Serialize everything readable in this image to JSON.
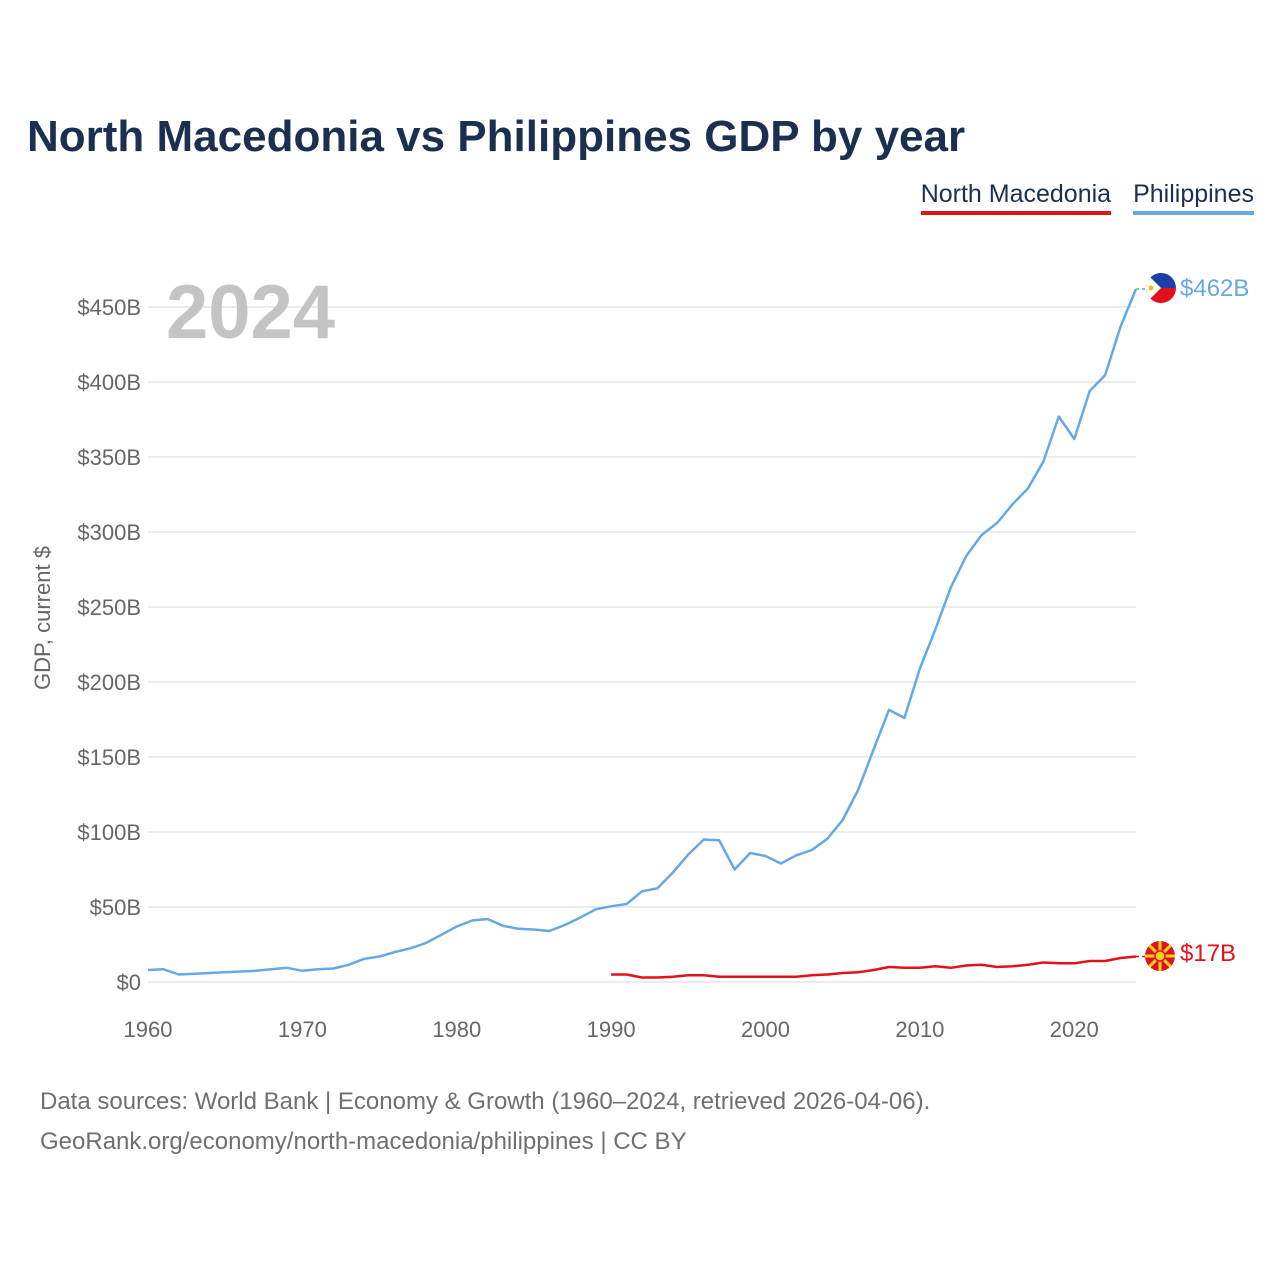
{
  "title": "North Macedonia vs Philippines GDP by year",
  "legend": {
    "north_macedonia": "North Macedonia",
    "philippines": "Philippines"
  },
  "colors": {
    "north_macedonia": "#e3121a",
    "philippines": "#66a8e6",
    "title": "#1b3050"
  },
  "icons": {
    "north_macedonia": "north-macedonia-flag-icon",
    "philippines": "philippines-flag-icon"
  },
  "footer": {
    "line1": "Data sources: World Bank | Economy & Growth (1960–2024, retrieved 2026-04-06).",
    "line2": "GeoRank.org/economy/north-macedonia/philippines | CC BY"
  },
  "chart_data": {
    "type": "line",
    "title": "North Macedonia vs Philippines GDP by year",
    "xlabel": "",
    "ylabel": "GDP, current $",
    "year_label": "2024",
    "xlim": [
      1960,
      2024
    ],
    "ylim": [
      0,
      462
    ],
    "grid": true,
    "x_ticks": [
      1960,
      1970,
      1980,
      1990,
      2000,
      2010,
      2020
    ],
    "x_tick_labels": [
      "1960",
      "1970",
      "1980",
      "1990",
      "2000",
      "2010",
      "2020"
    ],
    "y_ticks": [
      0,
      50,
      100,
      150,
      200,
      250,
      300,
      350,
      400,
      450
    ],
    "y_tick_labels": [
      "$0",
      "$50B",
      "$100B",
      "$150B",
      "$200B",
      "$250B",
      "$300B",
      "$350B",
      "$400B",
      "$450B"
    ],
    "series": [
      {
        "name": "Philippines",
        "key": "philippines",
        "end_label": "$462B",
        "x": [
          1960,
          1961,
          1962,
          1963,
          1964,
          1965,
          1966,
          1967,
          1968,
          1969,
          1970,
          1971,
          1972,
          1973,
          1974,
          1975,
          1976,
          1977,
          1978,
          1979,
          1980,
          1981,
          1982,
          1983,
          1984,
          1985,
          1986,
          1987,
          1988,
          1989,
          1990,
          1991,
          1992,
          1993,
          1994,
          1995,
          1996,
          1997,
          1998,
          1999,
          2000,
          2001,
          2002,
          2003,
          2004,
          2005,
          2006,
          2007,
          2008,
          2009,
          2010,
          2011,
          2012,
          2013,
          2014,
          2015,
          2016,
          2017,
          2018,
          2019,
          2020,
          2021,
          2022,
          2023,
          2024
        ],
        "values": [
          8,
          8.5,
          5,
          5.5,
          6,
          6.5,
          7,
          7.5,
          8.5,
          9.5,
          7.5,
          8.5,
          9,
          11.5,
          15.5,
          17,
          20,
          22.5,
          26,
          31.5,
          37,
          41,
          42,
          37.5,
          35.5,
          35,
          34,
          38,
          43,
          48.5,
          50.5,
          52,
          60.5,
          62.5,
          73,
          85,
          95,
          94.5,
          75,
          86,
          84,
          79,
          84.5,
          88,
          95.5,
          108,
          128,
          155,
          181.5,
          176,
          209,
          235,
          263,
          284,
          298,
          306,
          318.5,
          329,
          347,
          377,
          362,
          394,
          404.5,
          437,
          462
        ]
      },
      {
        "name": "North Macedonia",
        "key": "north_macedonia",
        "end_label": "$17B",
        "x": [
          1990,
          1991,
          1992,
          1993,
          1994,
          1995,
          1996,
          1997,
          1998,
          1999,
          2000,
          2001,
          2002,
          2003,
          2004,
          2005,
          2006,
          2007,
          2008,
          2009,
          2010,
          2011,
          2012,
          2013,
          2014,
          2015,
          2016,
          2017,
          2018,
          2019,
          2020,
          2021,
          2022,
          2023,
          2024
        ],
        "values": [
          5,
          5,
          3,
          3,
          3.5,
          4.5,
          4.5,
          3.5,
          3.5,
          3.5,
          3.5,
          3.5,
          3.5,
          4.5,
          5,
          6,
          6.5,
          8,
          10,
          9.5,
          9.5,
          10.5,
          9.5,
          11,
          11.5,
          10,
          10.5,
          11.5,
          13,
          12.5,
          12.5,
          14,
          14,
          16,
          17
        ]
      }
    ]
  }
}
